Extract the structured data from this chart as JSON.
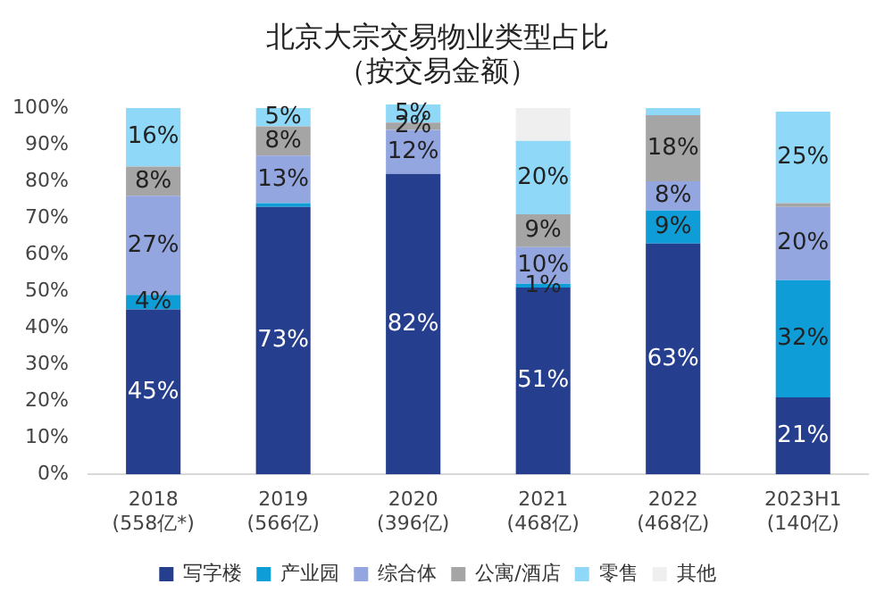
{
  "chart_data": {
    "type": "bar",
    "title": [
      "北京大宗交易物业类型占比",
      "（按交易金额）"
    ],
    "stacked": true,
    "categories": [
      "2018\n(558亿*)",
      "2019\n(566亿)",
      "2020\n(396亿)",
      "2021\n(468亿)",
      "2022\n(468亿)",
      "2023H1\n(140亿)"
    ],
    "series": [
      {
        "name": "写字楼",
        "color": "#253f8e",
        "values": [
          45,
          73,
          82,
          51,
          63,
          21
        ],
        "value_labels": [
          "45%",
          "73%",
          "82%",
          "51%",
          "63%",
          "21%"
        ]
      },
      {
        "name": "产业园",
        "color": "#0f9dd8",
        "values": [
          4,
          1,
          0,
          1,
          9,
          32
        ],
        "value_labels": [
          "4%",
          null,
          null,
          "1%",
          "9%",
          "32%"
        ]
      },
      {
        "name": "综合体",
        "color": "#94a6e0",
        "values": [
          27,
          13,
          12,
          10,
          8,
          20
        ],
        "value_labels": [
          "27%",
          "13%",
          "12%",
          "10%",
          "8%",
          "20%"
        ]
      },
      {
        "name": "公寓/酒店",
        "color": "#a5a5a5",
        "values": [
          8,
          8,
          2,
          9,
          18,
          1
        ],
        "value_labels": [
          "8%",
          "8%",
          "2%",
          "9%",
          "18%",
          null
        ]
      },
      {
        "name": "零售",
        "color": "#8fd8f8",
        "values": [
          16,
          5,
          5,
          20,
          2,
          25
        ],
        "value_labels": [
          "16%",
          "5%",
          "5%",
          "20%",
          null,
          "25%"
        ]
      },
      {
        "name": "其他",
        "color": "#efefef",
        "values": [
          0,
          0,
          0,
          9,
          0,
          0
        ],
        "value_labels": [
          null,
          null,
          null,
          null,
          null,
          null
        ]
      }
    ],
    "ylim": [
      0,
      101
    ],
    "yticks": [
      {
        "value": 0,
        "label": "0%"
      },
      {
        "value": 10,
        "label": "10%"
      },
      {
        "value": 20,
        "label": "20%"
      },
      {
        "value": 30,
        "label": "30%"
      },
      {
        "value": 40,
        "label": "40%"
      },
      {
        "value": 50,
        "label": "50%"
      },
      {
        "value": 60,
        "label": "60%"
      },
      {
        "value": 70,
        "label": "70%"
      },
      {
        "value": 80,
        "label": "80%"
      },
      {
        "value": 90,
        "label": "90%"
      },
      {
        "value": 100,
        "label": "100%"
      }
    ],
    "grid": false,
    "legend": "bottom"
  }
}
